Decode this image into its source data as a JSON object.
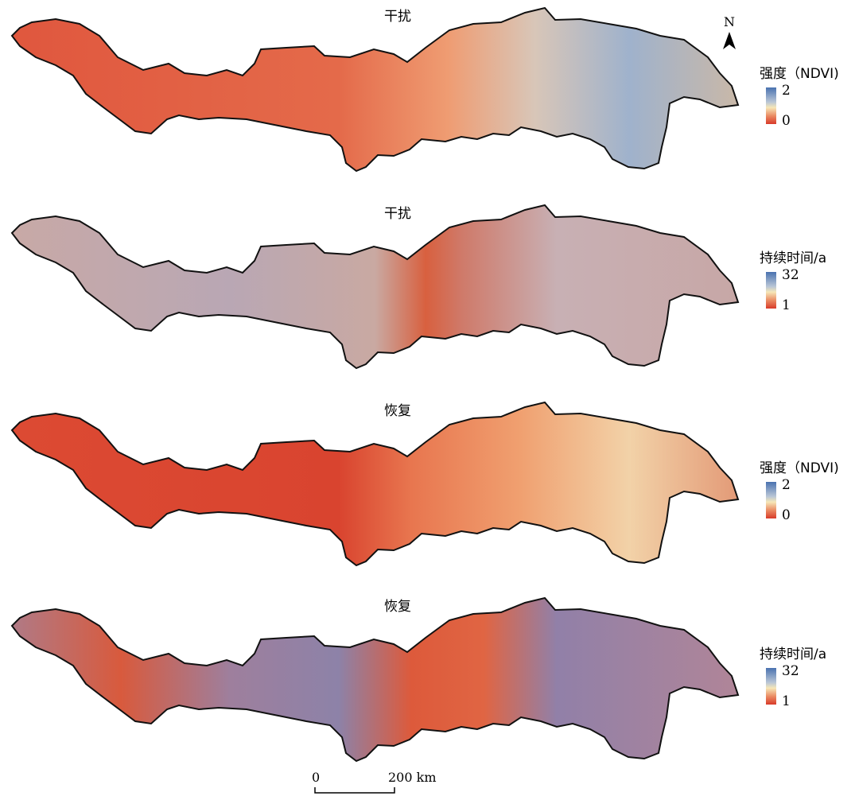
{
  "north_arrow": {
    "label": "N"
  },
  "panels": [
    {
      "title": "干扰",
      "legend_title": "强度（NDVI)",
      "legend_max": "2",
      "legend_min": "0",
      "palette": "intensity_disturb"
    },
    {
      "title": "干扰",
      "legend_title": "持续时间/a",
      "legend_max": "32",
      "legend_min": "1",
      "palette": "duration_disturb"
    },
    {
      "title": "恢复",
      "legend_title": "强度（NDVI)",
      "legend_max": "2",
      "legend_min": "0",
      "palette": "intensity_recover"
    },
    {
      "title": "恢复",
      "legend_title": "持续时间/a",
      "legend_max": "32",
      "legend_min": "1",
      "palette": "duration_recover"
    }
  ],
  "scale_bar": {
    "start_label": "0",
    "end_label": "200 km"
  },
  "colors": {
    "high": "#4a72b0",
    "mid": "#f6e7b8",
    "low": "#d83a2a",
    "outline": "#111111"
  }
}
